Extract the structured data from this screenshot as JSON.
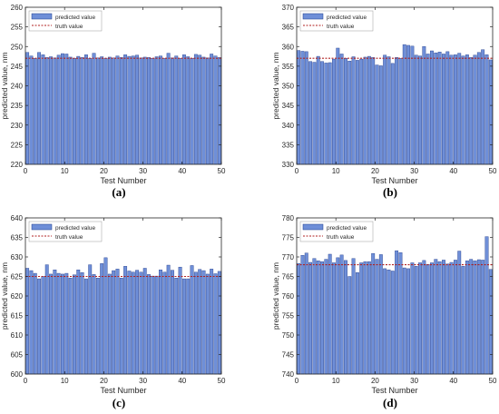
{
  "colors": {
    "bar_fill": "#6f8fd8",
    "bar_stroke": "#1f3a8a",
    "truth_line": "#b22222",
    "axis": "#262626",
    "grid_bg": "#ffffff"
  },
  "chart_data": [
    {
      "panel": "a",
      "type": "bar",
      "caption": "(a)",
      "xlabel": "Test Number",
      "ylabel": "predicted value, nm",
      "ylim": [
        220,
        260
      ],
      "yticks": [
        220,
        225,
        230,
        235,
        240,
        245,
        250,
        255,
        260
      ],
      "xlim": [
        0,
        50
      ],
      "xticks": [
        0,
        10,
        20,
        30,
        40,
        50
      ],
      "legend": {
        "position": "top-left",
        "entries": [
          "predicted value",
          "truth value"
        ]
      },
      "truth_value": 247,
      "series": [
        {
          "name": "predicted value",
          "values": [
            248.5,
            247.6,
            247.0,
            248.5,
            247.9,
            247.2,
            247.4,
            247.1,
            247.8,
            248.2,
            248.1,
            247.3,
            247.0,
            247.5,
            247.2,
            247.9,
            247.0,
            248.3,
            247.1,
            247.4,
            247.0,
            247.3,
            247.1,
            247.6,
            247.2,
            247.9,
            247.5,
            247.6,
            247.8,
            247.1,
            247.3,
            247.2,
            247.0,
            247.4,
            247.6,
            247.0,
            248.3,
            247.1,
            247.6,
            247.0,
            247.9,
            247.4,
            247.0,
            248.0,
            247.8,
            247.3,
            247.1,
            248.1,
            247.6,
            247.2
          ]
        },
        {
          "name": "truth value",
          "values": [
            247
          ]
        }
      ]
    },
    {
      "panel": "b",
      "type": "bar",
      "caption": "(b)",
      "xlabel": "Test Number",
      "ylabel": "predicted value, nm",
      "ylim": [
        330,
        370
      ],
      "yticks": [
        330,
        335,
        340,
        345,
        350,
        355,
        360,
        365,
        370
      ],
      "xlim": [
        0,
        50
      ],
      "xticks": [
        0,
        10,
        20,
        30,
        40,
        50
      ],
      "legend": {
        "position": "top-left",
        "entries": [
          "predicted value",
          "truth value"
        ]
      },
      "truth_value": 357,
      "series": [
        {
          "name": "predicted value",
          "values": [
            359.0,
            358.8,
            358.7,
            356.2,
            356.0,
            357.5,
            356.2,
            355.8,
            355.9,
            356.8,
            359.6,
            358.1,
            357.0,
            356.3,
            357.4,
            356.5,
            356.8,
            357.3,
            357.5,
            357.2,
            355.3,
            355.1,
            357.8,
            357.4,
            355.7,
            357.2,
            357.0,
            360.5,
            360.3,
            360.1,
            357.8,
            357.6,
            360.0,
            358.1,
            358.9,
            358.4,
            358.6,
            358.1,
            358.7,
            357.8,
            357.9,
            358.3,
            357.6,
            357.9,
            357.2,
            357.8,
            358.5,
            359.2,
            357.9,
            356.6
          ]
        },
        {
          "name": "truth value",
          "values": [
            357
          ]
        }
      ]
    },
    {
      "panel": "c",
      "type": "bar",
      "caption": "(c)",
      "xlabel": "Test Number",
      "ylabel": "predicted value, nm",
      "ylim": [
        600,
        640
      ],
      "yticks": [
        600,
        605,
        610,
        615,
        620,
        625,
        630,
        635,
        640
      ],
      "xlim": [
        0,
        50
      ],
      "xticks": [
        0,
        10,
        20,
        30,
        40,
        50
      ],
      "legend": {
        "position": "top-left",
        "entries": [
          "predicted value",
          "truth value"
        ]
      },
      "truth_value": 625,
      "series": [
        {
          "name": "predicted value",
          "values": [
            627.1,
            626.5,
            625.8,
            624.4,
            625.0,
            628.0,
            625.6,
            626.7,
            625.8,
            625.6,
            625.8,
            624.6,
            625.4,
            626.7,
            626.0,
            624.4,
            628.0,
            625.5,
            624.6,
            628.3,
            629.8,
            625.6,
            626.5,
            626.9,
            624.6,
            627.6,
            626.4,
            626.1,
            626.6,
            626.1,
            627.1,
            625.5,
            625.1,
            625.1,
            626.7,
            626.1,
            627.9,
            626.6,
            624.6,
            627.4,
            624.4,
            624.4,
            627.8,
            626.1,
            626.8,
            626.5,
            625.6,
            626.9,
            625.7,
            626.3
          ]
        },
        {
          "name": "truth value",
          "values": [
            625
          ]
        }
      ]
    },
    {
      "panel": "d",
      "type": "bar",
      "caption": "(d)",
      "xlabel": "Test Number",
      "ylabel": "predicted value, nm",
      "ylim": [
        740,
        780
      ],
      "yticks": [
        740,
        745,
        750,
        755,
        760,
        765,
        770,
        775,
        780
      ],
      "xlim": [
        0,
        50
      ],
      "xticks": [
        0,
        10,
        20,
        30,
        40,
        50
      ],
      "legend": {
        "position": "top-left",
        "entries": [
          "predicted value",
          "truth value"
        ]
      },
      "truth_value": 768,
      "series": [
        {
          "name": "predicted value",
          "values": [
            768.3,
            770.4,
            771.0,
            768.6,
            769.6,
            769.0,
            768.8,
            769.4,
            770.7,
            768.5,
            769.8,
            770.5,
            769.1,
            765.0,
            769.6,
            766.0,
            768.5,
            768.8,
            768.8,
            770.9,
            769.4,
            770.6,
            767.0,
            766.7,
            766.4,
            771.6,
            771.1,
            767.2,
            767.0,
            768.5,
            767.6,
            768.5,
            769.1,
            768.1,
            768.5,
            769.4,
            768.8,
            769.2,
            768.2,
            768.6,
            769.2,
            771.5,
            767.6,
            769.0,
            769.4,
            769.0,
            769.3,
            769.2,
            775.2,
            766.8
          ]
        },
        {
          "name": "truth value",
          "values": [
            768
          ]
        }
      ]
    }
  ]
}
